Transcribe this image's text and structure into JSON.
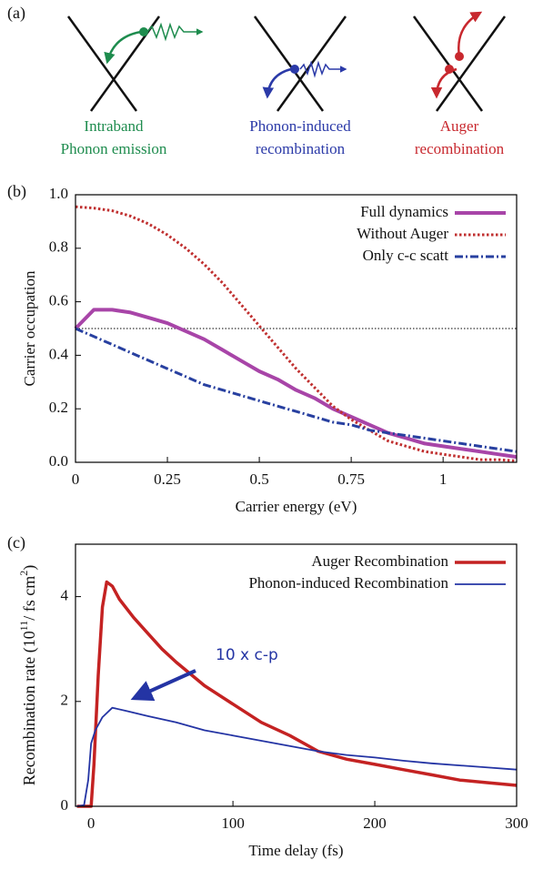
{
  "panel_a": {
    "label": "(a)",
    "items": [
      {
        "lines": [
          "Intraband",
          "Phonon emission"
        ],
        "color": "#1e8c4e"
      },
      {
        "lines": [
          "Phonon-induced",
          "recombination"
        ],
        "color": "#2b3aa8"
      },
      {
        "lines": [
          "Auger",
          "recombination"
        ],
        "color": "#c8282e"
      }
    ]
  },
  "chart_data": [
    {
      "type": "line",
      "panel": "(b)",
      "xlabel": "Carrier energy  (eV)",
      "ylabel": "Carrier occupation",
      "xlim": [
        0,
        1.2
      ],
      "ylim": [
        0,
        1.0
      ],
      "xticks": [
        0,
        0.25,
        0.5,
        0.75,
        1
      ],
      "yticks": [
        {
          "value": 0,
          "label": "0.0"
        },
        0.2,
        0.4,
        0.6,
        0.8,
        {
          "value": 1.0,
          "label": "1.0"
        }
      ],
      "hline": 0.5,
      "legend": "top-right",
      "x": [
        0,
        0.05,
        0.1,
        0.15,
        0.2,
        0.25,
        0.3,
        0.35,
        0.4,
        0.45,
        0.5,
        0.55,
        0.6,
        0.65,
        0.7,
        0.75,
        0.8,
        0.85,
        0.9,
        0.95,
        1.0,
        1.05,
        1.1,
        1.15,
        1.2
      ],
      "series": [
        {
          "name": "Full dynamics",
          "color": "#a845a8",
          "style": "solid",
          "width": 4,
          "values": [
            0.5,
            0.57,
            0.57,
            0.56,
            0.54,
            0.52,
            0.49,
            0.46,
            0.42,
            0.38,
            0.34,
            0.31,
            0.27,
            0.24,
            0.2,
            0.17,
            0.14,
            0.11,
            0.09,
            0.07,
            0.06,
            0.05,
            0.04,
            0.03,
            0.02
          ]
        },
        {
          "name": "Without Auger",
          "color": "#c03030",
          "style": "dotted",
          "width": 3,
          "values": [
            0.955,
            0.95,
            0.94,
            0.92,
            0.89,
            0.85,
            0.8,
            0.74,
            0.67,
            0.59,
            0.51,
            0.43,
            0.35,
            0.28,
            0.21,
            0.16,
            0.12,
            0.08,
            0.06,
            0.04,
            0.03,
            0.02,
            0.01,
            0.01,
            0.005
          ]
        },
        {
          "name": "Only c-c scatt",
          "color": "#2840a0",
          "style": "dashdot",
          "width": 3,
          "values": [
            0.5,
            0.47,
            0.44,
            0.41,
            0.38,
            0.35,
            0.32,
            0.29,
            0.27,
            0.25,
            0.23,
            0.21,
            0.19,
            0.17,
            0.15,
            0.14,
            0.12,
            0.11,
            0.1,
            0.09,
            0.08,
            0.07,
            0.06,
            0.05,
            0.04
          ]
        }
      ]
    },
    {
      "type": "line",
      "panel": "(c)",
      "xlabel": "Time delay (fs)",
      "ylabel": [
        "Recombination rate (10",
        "11",
        "/ fs cm",
        "2",
        ")"
      ],
      "xlim": [
        -11,
        300
      ],
      "ylim": [
        0,
        5
      ],
      "xticks": [
        0,
        100,
        200,
        300
      ],
      "yticks": [
        0,
        2,
        4
      ],
      "legend": "top-right",
      "annotation": "10 x c-p",
      "series": [
        {
          "name": "Auger Recombination",
          "color": "#c42222",
          "style": "solid",
          "width": 3.5,
          "x": [
            -10,
            0,
            2,
            5,
            8,
            11,
            15,
            20,
            30,
            40,
            50,
            60,
            80,
            100,
            120,
            140,
            160,
            180,
            200,
            220,
            240,
            260,
            280,
            300
          ],
          "values": [
            0,
            0,
            0.8,
            2.5,
            3.8,
            4.28,
            4.2,
            3.95,
            3.6,
            3.3,
            3.0,
            2.75,
            2.3,
            1.95,
            1.6,
            1.35,
            1.05,
            0.9,
            0.8,
            0.7,
            0.6,
            0.5,
            0.45,
            0.4
          ]
        },
        {
          "name": "Phonon-induced Recombination",
          "color": "#2434a4",
          "style": "solid",
          "width": 1.8,
          "x": [
            -10,
            -5,
            -2,
            0,
            3,
            8,
            15,
            25,
            40,
            60,
            80,
            100,
            120,
            140,
            160,
            180,
            200,
            220,
            240,
            260,
            280,
            300
          ],
          "values": [
            0,
            0.02,
            0.5,
            1.2,
            1.45,
            1.7,
            1.88,
            1.82,
            1.72,
            1.6,
            1.45,
            1.35,
            1.25,
            1.15,
            1.05,
            0.98,
            0.93,
            0.87,
            0.82,
            0.78,
            0.74,
            0.7
          ]
        }
      ]
    }
  ]
}
